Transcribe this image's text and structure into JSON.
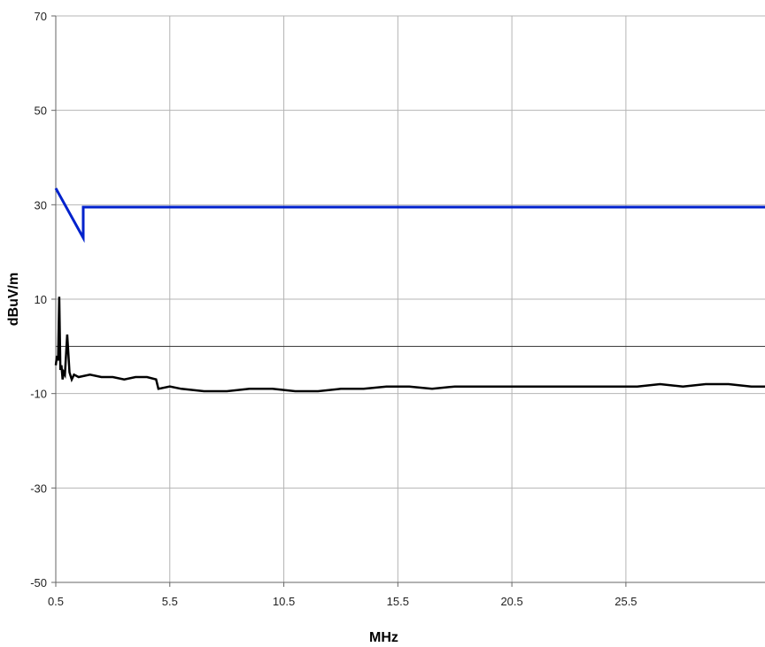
{
  "chart_data": {
    "type": "line",
    "title": "",
    "xlabel": "MHz",
    "ylabel": "dBuV/m",
    "xlim": [
      0.5,
      31.6
    ],
    "ylim": [
      -50,
      70
    ],
    "x_ticks": [
      0.5,
      5.5,
      10.5,
      15.5,
      20.5,
      25.5
    ],
    "x_tick_labels": [
      "0.5",
      "5.5",
      "10.5",
      "15.5",
      "20.5",
      "25.5"
    ],
    "y_ticks": [
      70,
      50,
      30,
      10,
      -10,
      -30,
      -50
    ],
    "y_tick_labels": [
      "70",
      "50",
      "30",
      "10",
      "-10",
      "-30",
      "-50"
    ],
    "grid": true,
    "reference_line_y": 0,
    "series": [
      {
        "color": "#0022cc",
        "x": [
          0.5,
          1.705,
          1.705,
          31.6
        ],
        "y": [
          33.5,
          23.0,
          29.5,
          29.5
        ]
      },
      {
        "color": "#000000",
        "x": [
          0.5,
          0.55,
          0.6,
          0.65,
          0.7,
          0.75,
          0.8,
          0.85,
          0.9,
          1.0,
          1.1,
          1.2,
          1.3,
          1.5,
          2.0,
          2.5,
          3.0,
          3.5,
          4.0,
          4.5,
          4.9,
          5.0,
          5.5,
          6.0,
          7.0,
          8.0,
          9.0,
          10.0,
          11.0,
          12.0,
          13.0,
          14.0,
          15.0,
          16.0,
          17.0,
          18.0,
          19.0,
          20.0,
          21.0,
          22.0,
          23.0,
          24.0,
          25.0,
          26.0,
          27.0,
          28.0,
          29.0,
          30.0,
          31.0,
          31.6
        ],
        "y": [
          -4.0,
          -2.0,
          -3.0,
          10.5,
          -5.0,
          -4.0,
          -7.0,
          -5.5,
          -6.0,
          2.5,
          -5.5,
          -7.0,
          -6.0,
          -6.5,
          -6.0,
          -6.5,
          -6.5,
          -7.0,
          -6.5,
          -6.5,
          -7.0,
          -9.0,
          -8.5,
          -9.0,
          -9.5,
          -9.5,
          -9.0,
          -9.0,
          -9.5,
          -9.5,
          -9.0,
          -9.0,
          -8.5,
          -8.5,
          -9.0,
          -8.5,
          -8.5,
          -8.5,
          -8.5,
          -8.5,
          -8.5,
          -8.5,
          -8.5,
          -8.5,
          -8.0,
          -8.5,
          -8.0,
          -8.0,
          -8.5,
          -8.5
        ]
      }
    ]
  }
}
